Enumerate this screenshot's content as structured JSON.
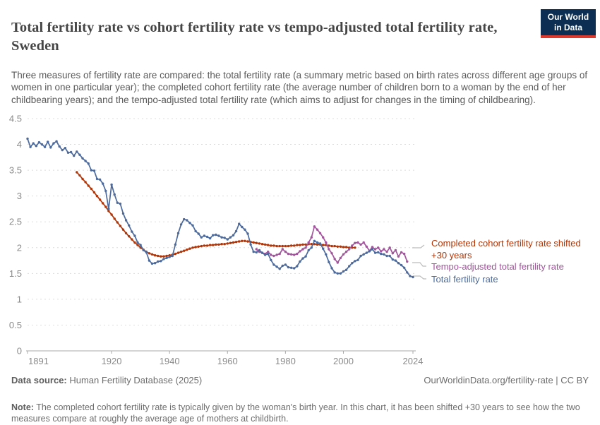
{
  "header": {
    "title": "Total fertility rate vs cohort fertility rate vs tempo-adjusted total fertility rate, Sweden",
    "subtitle": "Three measures of fertility rate are compared: the total fertility rate (a summary metric based on birth rates across different age groups of women in one particular year); the completed cohort fertility rate (the average number of children born to a woman by the end of her childbearing years); and the tempo-adjusted total fertility rate (which aims to adjust for changes in the timing of childbearing).",
    "logo": {
      "line1": "Our World",
      "line2": "in Data",
      "bg_color": "#0b2e52",
      "accent_color": "#dc3a2c"
    }
  },
  "chart_data": {
    "type": "line",
    "title": "Total fertility rate vs cohort fertility rate vs tempo-adjusted total fertility rate, Sweden",
    "xlabel": "",
    "ylabel": "",
    "xlim": [
      1891,
      2024
    ],
    "ylim": [
      0,
      4.5
    ],
    "grid": true,
    "legend_position": "right",
    "x_ticks": [
      1891,
      1920,
      1940,
      1960,
      1980,
      2000,
      2024
    ],
    "x_tick_labels": [
      "1891",
      "1920",
      "1940",
      "1960",
      "1980",
      "2000",
      "2024"
    ],
    "y_ticks": [
      0,
      0.5,
      1,
      1.5,
      2,
      2.5,
      3,
      3.5,
      4,
      4.5
    ],
    "y_tick_labels": [
      "0",
      "0.5",
      "1",
      "1.5",
      "2",
      "2.5",
      "3",
      "3.5",
      "4",
      "4.5"
    ],
    "series": [
      {
        "name": "Completed cohort fertility rate shifted +30 years",
        "color": "#b13507",
        "start_year": 1908,
        "values": [
          3.46,
          3.4,
          3.33,
          3.27,
          3.2,
          3.14,
          3.07,
          3.0,
          2.93,
          2.86,
          2.79,
          2.71,
          2.64,
          2.56,
          2.49,
          2.42,
          2.35,
          2.28,
          2.22,
          2.16,
          2.1,
          2.05,
          2.0,
          1.96,
          1.92,
          1.89,
          1.87,
          1.85,
          1.84,
          1.83,
          1.83,
          1.84,
          1.85,
          1.86,
          1.88,
          1.9,
          1.92,
          1.94,
          1.96,
          1.98,
          2.0,
          2.01,
          2.02,
          2.03,
          2.04,
          2.04,
          2.05,
          2.05,
          2.06,
          2.06,
          2.07,
          2.07,
          2.08,
          2.09,
          2.1,
          2.11,
          2.12,
          2.13,
          2.13,
          2.12,
          2.11,
          2.1,
          2.09,
          2.08,
          2.07,
          2.06,
          2.05,
          2.04,
          2.04,
          2.03,
          2.03,
          2.03,
          2.03,
          2.03,
          2.04,
          2.04,
          2.05,
          2.05,
          2.06,
          2.06,
          2.07,
          2.07,
          2.07,
          2.06,
          2.06,
          2.05,
          2.05,
          2.04,
          2.03,
          2.03,
          2.02,
          2.02,
          2.01,
          2.01,
          2.0,
          2.0,
          2.0
        ]
      },
      {
        "name": "Tempo-adjusted total fertility rate",
        "color": "#a2559c",
        "start_year": 1970,
        "values": [
          1.97,
          1.92,
          1.9,
          1.88,
          1.92,
          1.86,
          1.84,
          1.86,
          1.88,
          1.97,
          1.92,
          1.88,
          1.87,
          1.86,
          1.88,
          1.93,
          1.97,
          2.0,
          2.1,
          2.2,
          2.41,
          2.35,
          2.28,
          2.2,
          2.1,
          1.97,
          1.89,
          1.78,
          1.71,
          1.8,
          1.87,
          1.92,
          1.97,
          2.04,
          2.09,
          2.1,
          2.06,
          2.1,
          2.02,
          1.94,
          2.01,
          1.97,
          2.0,
          1.93,
          1.97,
          1.92,
          2.0,
          1.89,
          1.95,
          1.83,
          1.91,
          1.88,
          1.73
        ]
      },
      {
        "name": "Total fertility rate",
        "color": "#4c6a9c",
        "start_year": 1891,
        "values": [
          4.11,
          3.95,
          4.02,
          3.97,
          4.04,
          4.0,
          3.95,
          4.05,
          3.94,
          4.02,
          4.06,
          3.96,
          3.89,
          3.93,
          3.84,
          3.85,
          3.78,
          3.86,
          3.8,
          3.73,
          3.68,
          3.63,
          3.5,
          3.49,
          3.33,
          3.32,
          3.24,
          3.1,
          2.75,
          3.22,
          3.03,
          2.87,
          2.85,
          2.66,
          2.53,
          2.43,
          2.31,
          2.23,
          2.1,
          2.05,
          1.95,
          1.91,
          1.75,
          1.69,
          1.7,
          1.73,
          1.74,
          1.78,
          1.8,
          1.82,
          1.84,
          2.06,
          2.28,
          2.45,
          2.55,
          2.53,
          2.48,
          2.43,
          2.32,
          2.27,
          2.2,
          2.23,
          2.21,
          2.18,
          2.24,
          2.25,
          2.23,
          2.2,
          2.19,
          2.16,
          2.2,
          2.24,
          2.32,
          2.46,
          2.4,
          2.35,
          2.27,
          2.06,
          1.92,
          1.91,
          1.95,
          1.9,
          1.86,
          1.88,
          1.76,
          1.67,
          1.63,
          1.59,
          1.65,
          1.67,
          1.62,
          1.61,
          1.6,
          1.64,
          1.73,
          1.79,
          1.83,
          1.95,
          2.0,
          2.13,
          2.1,
          2.08,
          1.98,
          1.87,
          1.72,
          1.6,
          1.52,
          1.5,
          1.5,
          1.54,
          1.57,
          1.64,
          1.7,
          1.74,
          1.76,
          1.84,
          1.87,
          1.9,
          1.93,
          1.97,
          1.9,
          1.91,
          1.88,
          1.87,
          1.84,
          1.84,
          1.77,
          1.75,
          1.7,
          1.66,
          1.61,
          1.52,
          1.45,
          1.43
        ]
      }
    ]
  },
  "legend": {
    "cohort_label": "Completed cohort fertility rate shifted +30 years",
    "tempo_label": "Tempo-adjusted total fertility rate",
    "tfr_label": "Total fertility rate"
  },
  "footer": {
    "data_source_label": "Data source:",
    "data_source_value": " Human Fertility Database (2025)",
    "link_text": "OurWorldinData.org/fertility-rate | CC BY",
    "note_label": "Note:",
    "note_text": " The completed cohort fertility rate is typically given by the woman's birth year. In this chart, it has been shifted +30 years to see how the two measures compare at roughly the average age of mothers at childbirth."
  }
}
